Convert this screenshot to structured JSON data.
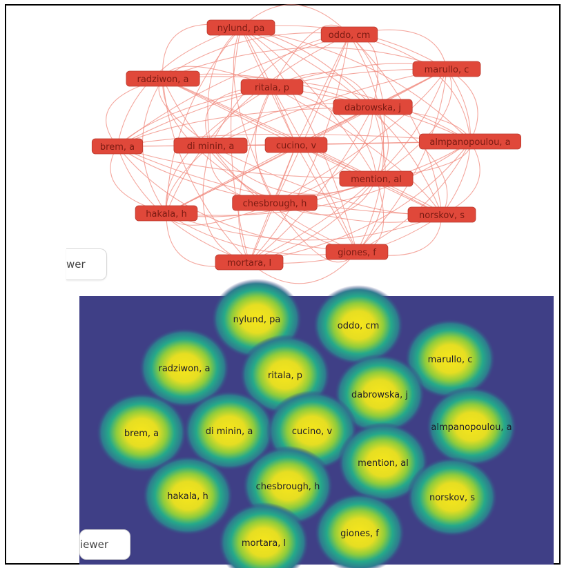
{
  "network_view": {
    "nodes": [
      {
        "id": "nylund",
        "label": "nylund, pa"
      },
      {
        "id": "oddo",
        "label": "oddo, cm"
      },
      {
        "id": "marullo",
        "label": "marullo, c"
      },
      {
        "id": "radziwon",
        "label": "radziwon, a"
      },
      {
        "id": "ritala",
        "label": "ritala, p"
      },
      {
        "id": "dabrowska",
        "label": "dabrowska, j"
      },
      {
        "id": "brem",
        "label": "brem, a"
      },
      {
        "id": "diminin",
        "label": "di minin, a"
      },
      {
        "id": "cucino",
        "label": "cucino, v"
      },
      {
        "id": "almpanopoulou",
        "label": "almpanopoulou, a"
      },
      {
        "id": "mention",
        "label": "mention, al"
      },
      {
        "id": "chesbrough",
        "label": "chesbrough, h"
      },
      {
        "id": "hakala",
        "label": "hakala, h"
      },
      {
        "id": "norskov",
        "label": "norskov, s"
      },
      {
        "id": "giones",
        "label": "giones, f"
      },
      {
        "id": "mortara",
        "label": "mortara, l"
      }
    ],
    "node_color": "#e0483a",
    "link_color": "#f08a7e",
    "viewer_chip": "wer"
  },
  "density_view": {
    "labels": [
      {
        "id": "nylund",
        "label": "nylund, pa"
      },
      {
        "id": "oddo",
        "label": "oddo, cm"
      },
      {
        "id": "marullo",
        "label": "marullo, c"
      },
      {
        "id": "radziwon",
        "label": "radziwon, a"
      },
      {
        "id": "ritala",
        "label": "ritala, p"
      },
      {
        "id": "dabrowska",
        "label": "dabrowska, j"
      },
      {
        "id": "brem",
        "label": "brem, a"
      },
      {
        "id": "diminin",
        "label": "di minin, a"
      },
      {
        "id": "cucino",
        "label": "cucino, v"
      },
      {
        "id": "almpanopoulou",
        "label": "almpanopoulou, a"
      },
      {
        "id": "mention",
        "label": "mention, al"
      },
      {
        "id": "chesbrough",
        "label": "chesbrough, h"
      },
      {
        "id": "hakala",
        "label": "hakala, h"
      },
      {
        "id": "norskov",
        "label": "norskov, s"
      },
      {
        "id": "giones",
        "label": "giones, f"
      },
      {
        "id": "mortara",
        "label": "mortara, l"
      }
    ],
    "background_color": "#3f3f86",
    "hot_color": "#f5e51b",
    "mid_color": "#27a78a",
    "viewer_chip": "iewer"
  }
}
